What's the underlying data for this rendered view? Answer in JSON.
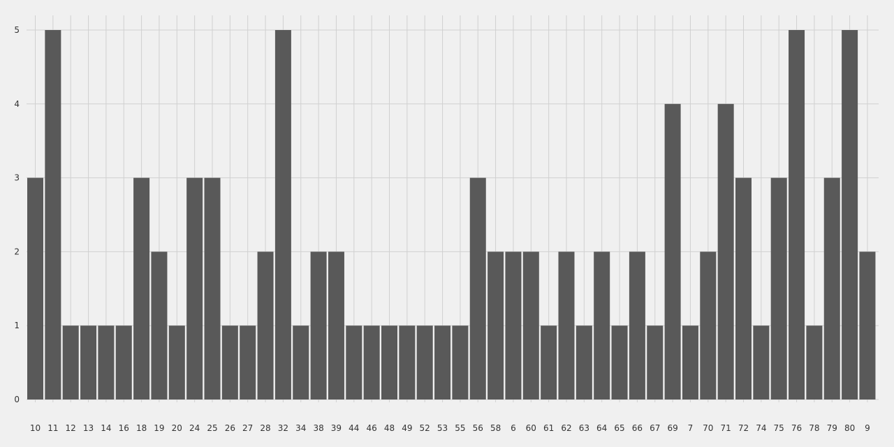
{
  "chart_data": {
    "type": "bar",
    "title": "",
    "xlabel": "",
    "ylabel": "",
    "ylim": [
      0,
      5
    ],
    "yticks": [
      0,
      1,
      2,
      3,
      4,
      5
    ],
    "grid": true,
    "legend": "none",
    "colors": {
      "background": "#f0f0f0",
      "grid": "#d0d0d0",
      "bar": "#595959",
      "text": "#333333"
    },
    "categories": [
      "10",
      "11",
      "12",
      "13",
      "14",
      "16",
      "18",
      "19",
      "20",
      "24",
      "25",
      "26",
      "27",
      "28",
      "32",
      "34",
      "38",
      "39",
      "44",
      "46",
      "48",
      "49",
      "52",
      "53",
      "55",
      "56",
      "58",
      "6",
      "60",
      "61",
      "62",
      "63",
      "64",
      "65",
      "66",
      "67",
      "69",
      "7",
      "70",
      "71",
      "72",
      "74",
      "75",
      "76",
      "78",
      "79",
      "80",
      "9"
    ],
    "values": [
      3,
      5,
      1,
      1,
      1,
      1,
      3,
      2,
      1,
      3,
      3,
      1,
      1,
      2,
      5,
      1,
      2,
      2,
      1,
      1,
      1,
      1,
      1,
      1,
      1,
      3,
      2,
      2,
      2,
      1,
      2,
      1,
      2,
      1,
      2,
      1,
      4,
      1,
      2,
      4,
      3,
      1,
      3,
      5,
      1,
      3,
      5,
      2
    ]
  }
}
